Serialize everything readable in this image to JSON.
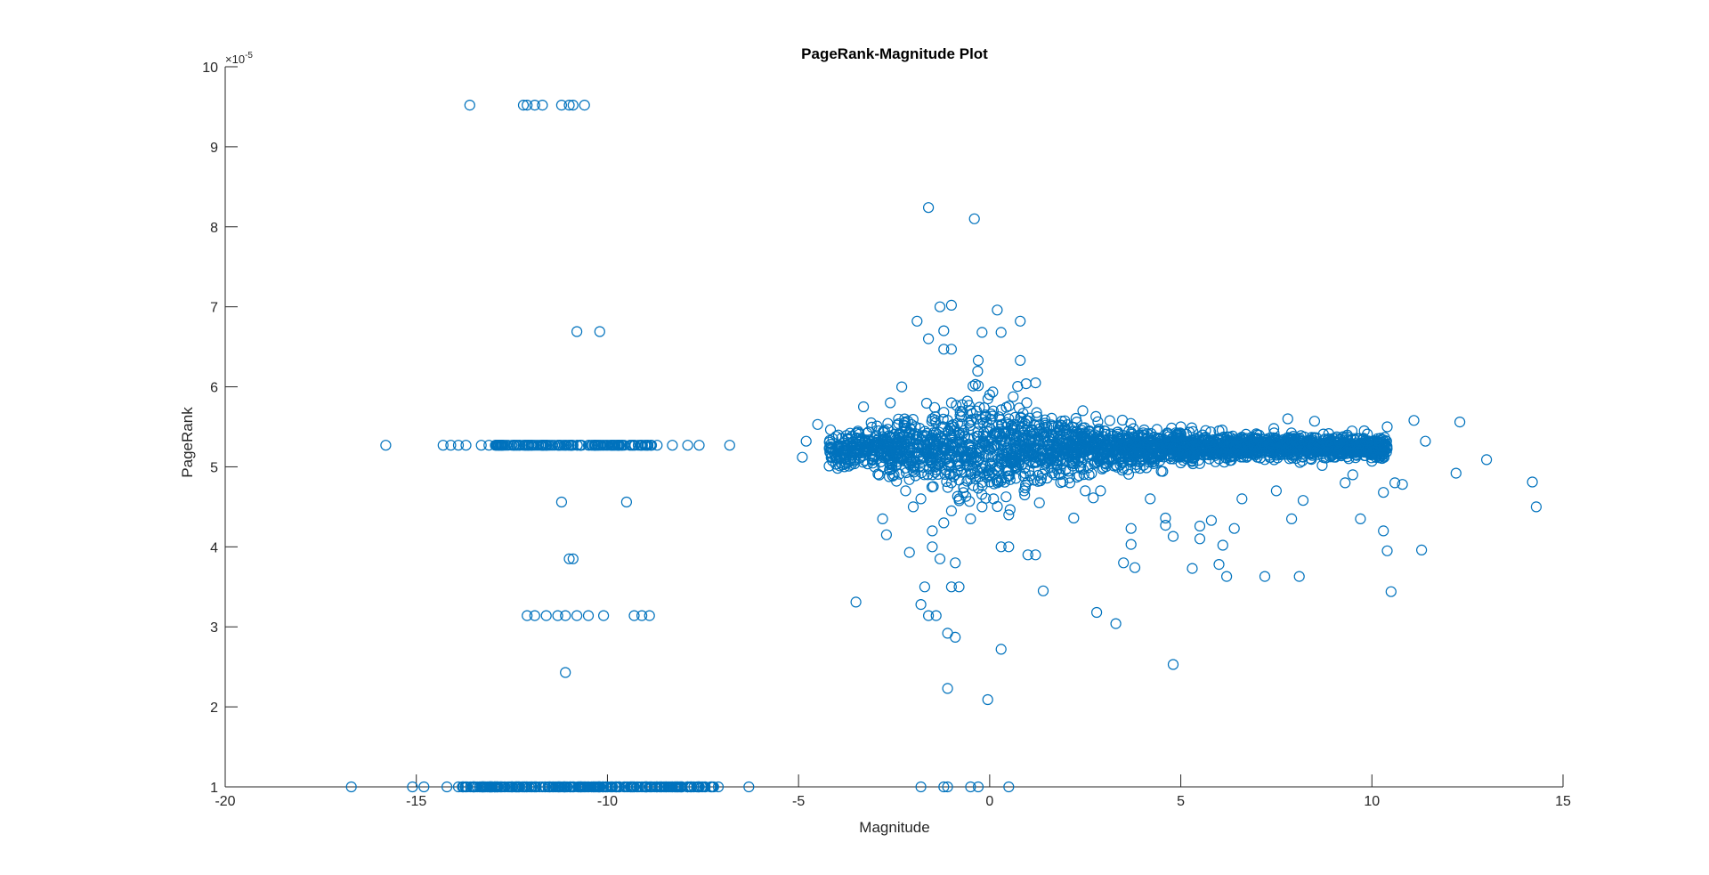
{
  "chart_data": {
    "type": "scatter",
    "title": "PageRank-Magnitude Plot",
    "xlabel": "Magnitude",
    "ylabel": "PageRank",
    "y_multiplier_label": "×10",
    "y_multiplier_exponent": "-5",
    "xlim": [
      -20,
      15
    ],
    "ylim": [
      1,
      10
    ],
    "x_ticks": [
      -20,
      -15,
      -10,
      -5,
      0,
      5,
      10,
      15
    ],
    "x_tick_labels": [
      "-20",
      "-15",
      "-10",
      "-5",
      "0",
      "5",
      "10",
      "15"
    ],
    "y_ticks": [
      1,
      2,
      3,
      4,
      5,
      6,
      7,
      8,
      9,
      10
    ],
    "y_tick_labels": [
      "1",
      "2",
      "3",
      "4",
      "5",
      "6",
      "7",
      "8",
      "9",
      "10"
    ],
    "y_units": "PageRank values in units of 1e-5",
    "marker": "open circle",
    "grid": false,
    "legend": "none",
    "colors": {
      "marker": "#0072BD",
      "axis": "#262626",
      "background": "#ffffff"
    },
    "series": [
      {
        "points": [
          [
            -13.6,
            9.52
          ],
          [
            -12.2,
            9.52
          ],
          [
            -12.1,
            9.52
          ],
          [
            -11.9,
            9.52
          ],
          [
            -11.7,
            9.52
          ],
          [
            -11.2,
            9.52
          ],
          [
            -11.0,
            9.52
          ],
          [
            -10.9,
            9.52
          ],
          [
            -10.6,
            9.52
          ],
          [
            -10.8,
            6.69
          ],
          [
            -10.2,
            6.69
          ],
          [
            -15.8,
            5.27
          ],
          [
            -14.3,
            5.27
          ],
          [
            -14.1,
            5.27
          ],
          [
            -13.9,
            5.27
          ],
          [
            -13.7,
            5.27
          ],
          [
            -13.3,
            5.27
          ],
          [
            -13.1,
            5.27
          ],
          [
            -12.9,
            5.27
          ],
          [
            -12.7,
            5.27
          ],
          [
            -12.5,
            5.27
          ],
          [
            -12.3,
            5.27
          ],
          [
            -12.1,
            5.27
          ],
          [
            -11.9,
            5.27
          ],
          [
            -11.7,
            5.27
          ],
          [
            -11.5,
            5.27
          ],
          [
            -11.3,
            5.27
          ],
          [
            -11.1,
            5.27
          ],
          [
            -10.9,
            5.27
          ],
          [
            -10.7,
            5.27
          ],
          [
            -10.5,
            5.27
          ],
          [
            -10.3,
            5.27
          ],
          [
            -10.1,
            5.27
          ],
          [
            -9.9,
            5.27
          ],
          [
            -9.6,
            5.27
          ],
          [
            -9.3,
            5.27
          ],
          [
            -9.0,
            5.27
          ],
          [
            -8.7,
            5.27
          ],
          [
            -8.3,
            5.27
          ],
          [
            -7.9,
            5.27
          ],
          [
            -7.6,
            5.27
          ],
          [
            -6.8,
            5.27
          ],
          [
            -11.2,
            4.56
          ],
          [
            -9.5,
            4.56
          ],
          [
            -11.0,
            3.85
          ],
          [
            -10.9,
            3.85
          ],
          [
            -12.1,
            3.14
          ],
          [
            -11.9,
            3.14
          ],
          [
            -11.6,
            3.14
          ],
          [
            -11.3,
            3.14
          ],
          [
            -11.1,
            3.14
          ],
          [
            -10.8,
            3.14
          ],
          [
            -10.5,
            3.14
          ],
          [
            -10.1,
            3.14
          ],
          [
            -9.3,
            3.14
          ],
          [
            -9.1,
            3.14
          ],
          [
            -8.9,
            3.14
          ],
          [
            -11.1,
            2.43
          ],
          [
            -16.7,
            1.0
          ],
          [
            -15.1,
            1.0
          ],
          [
            -14.8,
            1.0
          ],
          [
            -14.2,
            1.0
          ],
          [
            -13.9,
            1.0
          ],
          [
            -13.7,
            1.0
          ],
          [
            -13.5,
            1.0
          ],
          [
            -13.3,
            1.0
          ],
          [
            -13.1,
            1.0
          ],
          [
            -12.9,
            1.0
          ],
          [
            -12.7,
            1.0
          ],
          [
            -12.5,
            1.0
          ],
          [
            -12.3,
            1.0
          ],
          [
            -12.1,
            1.0
          ],
          [
            -11.9,
            1.0
          ],
          [
            -11.7,
            1.0
          ],
          [
            -11.5,
            1.0
          ],
          [
            -11.3,
            1.0
          ],
          [
            -11.1,
            1.0
          ],
          [
            -10.9,
            1.0
          ],
          [
            -10.7,
            1.0
          ],
          [
            -10.5,
            1.0
          ],
          [
            -10.3,
            1.0
          ],
          [
            -10.1,
            1.0
          ],
          [
            -9.9,
            1.0
          ],
          [
            -9.7,
            1.0
          ],
          [
            -9.5,
            1.0
          ],
          [
            -9.3,
            1.0
          ],
          [
            -9.1,
            1.0
          ],
          [
            -8.9,
            1.0
          ],
          [
            -8.7,
            1.0
          ],
          [
            -8.4,
            1.0
          ],
          [
            -8.1,
            1.0
          ],
          [
            -7.8,
            1.0
          ],
          [
            -7.5,
            1.0
          ],
          [
            -7.3,
            1.0
          ],
          [
            -7.1,
            1.0
          ],
          [
            -6.3,
            1.0
          ],
          [
            -1.8,
            1.0
          ],
          [
            -1.2,
            1.0
          ],
          [
            -1.1,
            1.0
          ],
          [
            -0.5,
            1.0
          ],
          [
            -0.3,
            1.0
          ],
          [
            0.5,
            1.0
          ],
          [
            -1.6,
            8.24
          ],
          [
            -0.4,
            8.1
          ],
          [
            -1.3,
            7.0
          ],
          [
            -1.0,
            7.02
          ],
          [
            0.2,
            6.96
          ],
          [
            -1.9,
            6.82
          ],
          [
            0.8,
            6.82
          ],
          [
            -1.2,
            6.7
          ],
          [
            0.3,
            6.68
          ],
          [
            -0.2,
            6.68
          ],
          [
            -1.0,
            6.47
          ],
          [
            -1.2,
            6.47
          ],
          [
            -0.3,
            6.33
          ],
          [
            0.8,
            6.33
          ],
          [
            -1.6,
            6.6
          ],
          [
            -2.3,
            6.0
          ],
          [
            1.2,
            6.05
          ],
          [
            -4.9,
            5.12
          ],
          [
            -4.8,
            5.32
          ],
          [
            -4.5,
            5.53
          ],
          [
            -4.1,
            5.35
          ],
          [
            -3.8,
            5.0
          ],
          [
            -3.5,
            5.2
          ],
          [
            -3.3,
            5.75
          ],
          [
            -3.1,
            5.55
          ],
          [
            -3.9,
            5.05
          ],
          [
            -4.0,
            5.25
          ],
          [
            -2.9,
            5.45
          ],
          [
            -2.8,
            5.0
          ],
          [
            -2.6,
            5.8
          ],
          [
            -2.5,
            4.9
          ],
          [
            -2.2,
            4.7
          ],
          [
            -2.0,
            4.5
          ],
          [
            -1.8,
            4.6
          ],
          [
            -1.5,
            4.2
          ],
          [
            -1.2,
            4.3
          ],
          [
            -1.0,
            4.45
          ],
          [
            -0.8,
            4.6
          ],
          [
            -0.5,
            4.35
          ],
          [
            -0.2,
            4.5
          ],
          [
            0.1,
            4.6
          ],
          [
            0.5,
            4.4
          ],
          [
            0.9,
            4.7
          ],
          [
            1.3,
            4.55
          ],
          [
            1.7,
            4.9
          ],
          [
            2.1,
            4.8
          ],
          [
            2.5,
            4.7
          ],
          [
            -2.1,
            3.93
          ],
          [
            -1.5,
            4.0
          ],
          [
            -1.3,
            3.85
          ],
          [
            -0.9,
            3.8
          ],
          [
            0.3,
            4.0
          ],
          [
            0.5,
            4.0
          ],
          [
            1.0,
            3.9
          ],
          [
            1.2,
            3.9
          ],
          [
            -3.5,
            3.31
          ],
          [
            -2.8,
            4.35
          ],
          [
            -2.7,
            4.15
          ],
          [
            -1.7,
            3.5
          ],
          [
            -1.8,
            3.28
          ],
          [
            -1.6,
            3.14
          ],
          [
            -1.4,
            3.14
          ],
          [
            -1.0,
            3.5
          ],
          [
            -0.8,
            3.5
          ],
          [
            -1.1,
            2.92
          ],
          [
            -0.9,
            2.87
          ],
          [
            0.3,
            2.72
          ],
          [
            -1.1,
            2.23
          ],
          [
            -0.05,
            2.09
          ],
          [
            1.4,
            3.45
          ],
          [
            2.8,
            3.18
          ],
          [
            3.3,
            3.04
          ],
          [
            2.2,
            4.36
          ],
          [
            2.9,
            4.7
          ],
          [
            3.5,
            3.8
          ],
          [
            3.8,
            3.74
          ],
          [
            3.7,
            4.03
          ],
          [
            3.7,
            4.23
          ],
          [
            4.2,
            4.6
          ],
          [
            4.6,
            4.36
          ],
          [
            4.6,
            4.27
          ],
          [
            4.8,
            4.13
          ],
          [
            5.3,
            3.73
          ],
          [
            5.5,
            4.1
          ],
          [
            5.5,
            4.26
          ],
          [
            5.8,
            4.33
          ],
          [
            6.0,
            3.78
          ],
          [
            6.2,
            3.63
          ],
          [
            6.1,
            4.02
          ],
          [
            6.4,
            4.23
          ],
          [
            6.6,
            4.6
          ],
          [
            7.2,
            3.63
          ],
          [
            8.1,
            3.63
          ],
          [
            7.5,
            4.7
          ],
          [
            7.9,
            4.35
          ],
          [
            8.2,
            4.58
          ],
          [
            9.5,
            4.9
          ],
          [
            9.7,
            4.35
          ],
          [
            9.3,
            4.8
          ],
          [
            10.0,
            5.07
          ],
          [
            10.3,
            4.68
          ],
          [
            10.4,
            3.95
          ],
          [
            10.5,
            3.44
          ],
          [
            10.6,
            4.8
          ],
          [
            10.3,
            4.2
          ],
          [
            10.8,
            4.78
          ],
          [
            11.3,
            3.96
          ],
          [
            11.4,
            5.32
          ],
          [
            12.2,
            4.92
          ],
          [
            13.0,
            5.09
          ],
          [
            14.2,
            4.81
          ],
          [
            14.3,
            4.5
          ],
          [
            12.3,
            5.56
          ],
          [
            11.1,
            5.58
          ],
          [
            10.4,
            5.5
          ],
          [
            9.8,
            5.45
          ],
          [
            8.5,
            5.57
          ],
          [
            7.8,
            5.6
          ],
          [
            4.8,
            2.53
          ],
          [
            -0.8,
            5.22
          ],
          [
            -0.5,
            5.18
          ],
          [
            -0.2,
            5.3
          ],
          [
            0.1,
            5.25
          ],
          [
            0.4,
            5.15
          ],
          [
            0.7,
            5.35
          ],
          [
            1.0,
            5.2
          ],
          [
            1.3,
            5.28
          ],
          [
            1.6,
            5.22
          ],
          [
            1.9,
            5.3
          ],
          [
            2.2,
            5.25
          ],
          [
            2.5,
            5.22
          ],
          [
            2.8,
            5.27
          ],
          [
            3.1,
            5.24
          ],
          [
            3.4,
            5.28
          ],
          [
            3.7,
            5.22
          ],
          [
            4.0,
            5.26
          ],
          [
            4.3,
            5.24
          ],
          [
            4.6,
            5.27
          ],
          [
            4.9,
            5.25
          ],
          [
            5.2,
            5.23
          ],
          [
            5.5,
            5.27
          ],
          [
            5.8,
            5.25
          ],
          [
            6.1,
            5.24
          ],
          [
            6.4,
            5.27
          ],
          [
            6.7,
            5.25
          ],
          [
            7.0,
            5.26
          ],
          [
            7.3,
            5.24
          ],
          [
            7.6,
            5.27
          ],
          [
            7.9,
            5.25
          ],
          [
            8.2,
            5.26
          ],
          [
            8.5,
            5.24
          ],
          [
            8.8,
            5.27
          ],
          [
            9.1,
            5.25
          ],
          [
            9.4,
            5.26
          ],
          [
            9.7,
            5.28
          ],
          [
            10.0,
            5.3
          ],
          [
            -1.5,
            5.6
          ],
          [
            -1.0,
            5.8
          ],
          [
            -0.5,
            5.7
          ],
          [
            0.0,
            5.9
          ],
          [
            0.5,
            5.6
          ],
          [
            -1.5,
            4.9
          ],
          [
            -1.0,
            4.8
          ],
          [
            -0.5,
            4.85
          ],
          [
            0.0,
            4.9
          ],
          [
            0.5,
            4.95
          ],
          [
            -2.0,
            5.4
          ],
          [
            -2.5,
            5.1
          ],
          [
            -3.0,
            5.3
          ],
          [
            1.5,
            5.5
          ],
          [
            2.0,
            5.4
          ],
          [
            3.0,
            5.45
          ],
          [
            4.0,
            5.4
          ],
          [
            5.0,
            5.5
          ],
          [
            6.0,
            5.45
          ],
          [
            7.0,
            5.4
          ],
          [
            3.0,
            5.05
          ],
          [
            4.0,
            5.1
          ],
          [
            5.0,
            5.05
          ],
          [
            6.0,
            5.1
          ],
          [
            7.0,
            5.12
          ]
        ]
      }
    ]
  }
}
